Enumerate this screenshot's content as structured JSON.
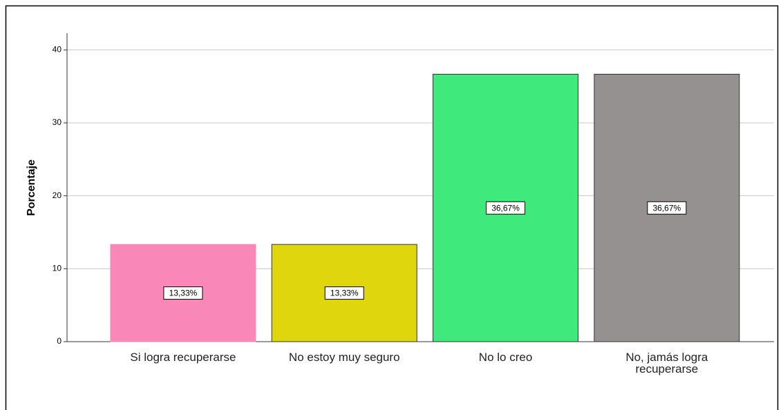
{
  "chart_data": {
    "type": "bar",
    "y_label": "Porcentaje",
    "categories": [
      "Si logra recuperarse",
      "No estoy muy seguro",
      "No lo creo",
      "No, jamás logra recuperarse"
    ],
    "values": [
      13.33,
      13.33,
      36.67,
      36.67
    ],
    "value_labels": [
      "13,33%",
      "13,33%",
      "36,67%",
      "36,67%"
    ],
    "colors": [
      "#f987b8",
      "#e0d60e",
      "#40e97c",
      "#959190"
    ],
    "ylim": [
      0,
      42.3
    ],
    "yticks": [
      0,
      10,
      20,
      30,
      40
    ],
    "grid": true
  }
}
